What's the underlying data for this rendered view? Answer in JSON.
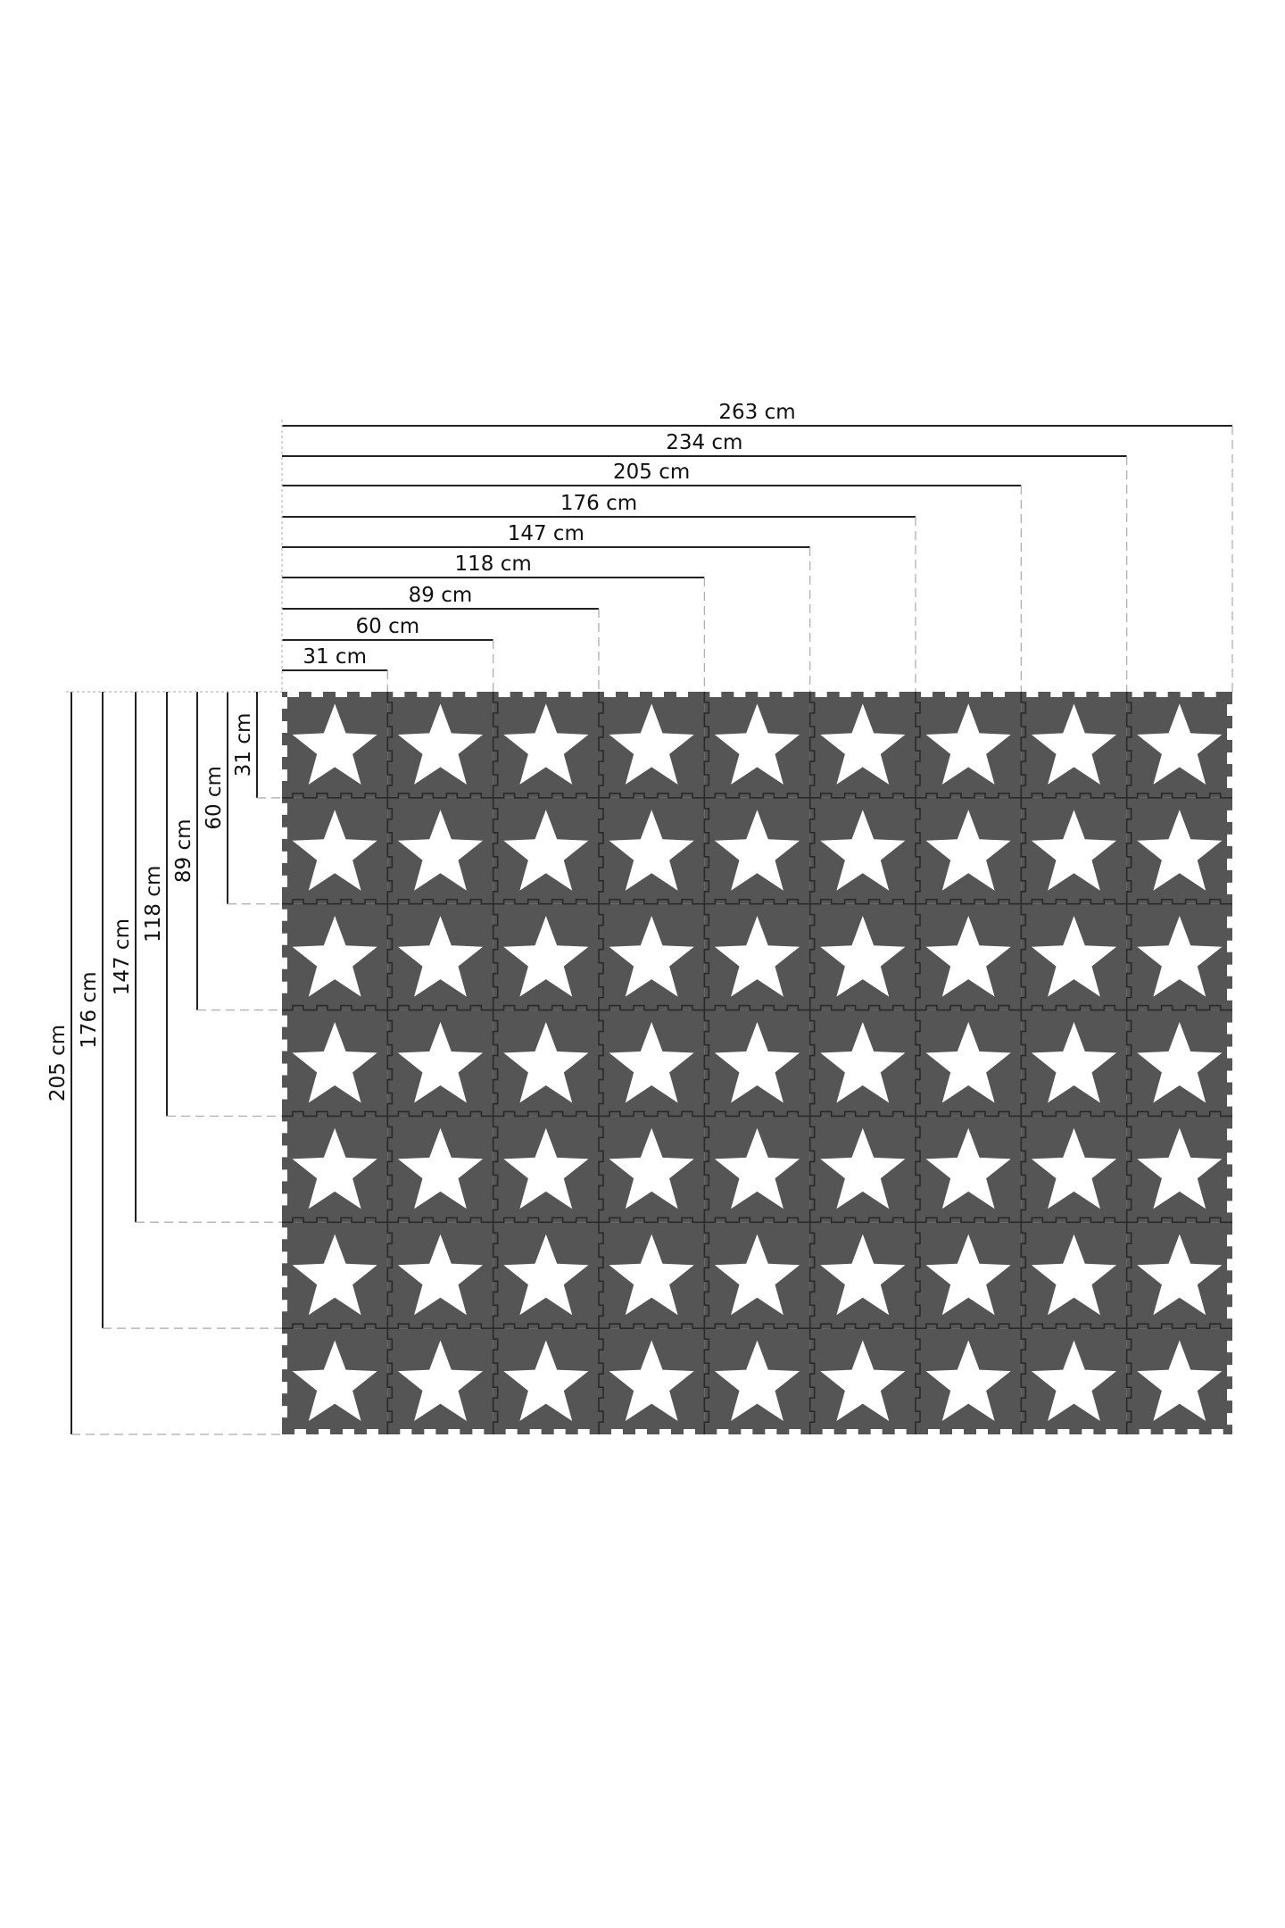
{
  "mat": {
    "columns": 9,
    "rows": 7,
    "tile_color": "#555555",
    "star_color": "#ffffff",
    "tile_icon": "star-icon"
  },
  "width_dimensions": [
    {
      "label": "31 cm",
      "tiles": 1
    },
    {
      "label": "60 cm",
      "tiles": 2
    },
    {
      "label": "89 cm",
      "tiles": 3
    },
    {
      "label": "118 cm",
      "tiles": 4
    },
    {
      "label": "147 cm",
      "tiles": 5
    },
    {
      "label": "176 cm",
      "tiles": 6
    },
    {
      "label": "205 cm",
      "tiles": 7
    },
    {
      "label": "234 cm",
      "tiles": 8
    },
    {
      "label": "263 cm",
      "tiles": 9
    }
  ],
  "height_dimensions": [
    {
      "label": "31 cm",
      "tiles": 1
    },
    {
      "label": "60 cm",
      "tiles": 2
    },
    {
      "label": "89 cm",
      "tiles": 3
    },
    {
      "label": "118 cm",
      "tiles": 4
    },
    {
      "label": "147 cm",
      "tiles": 5
    },
    {
      "label": "176 cm",
      "tiles": 6
    },
    {
      "label": "205 cm",
      "tiles": 7
    }
  ]
}
